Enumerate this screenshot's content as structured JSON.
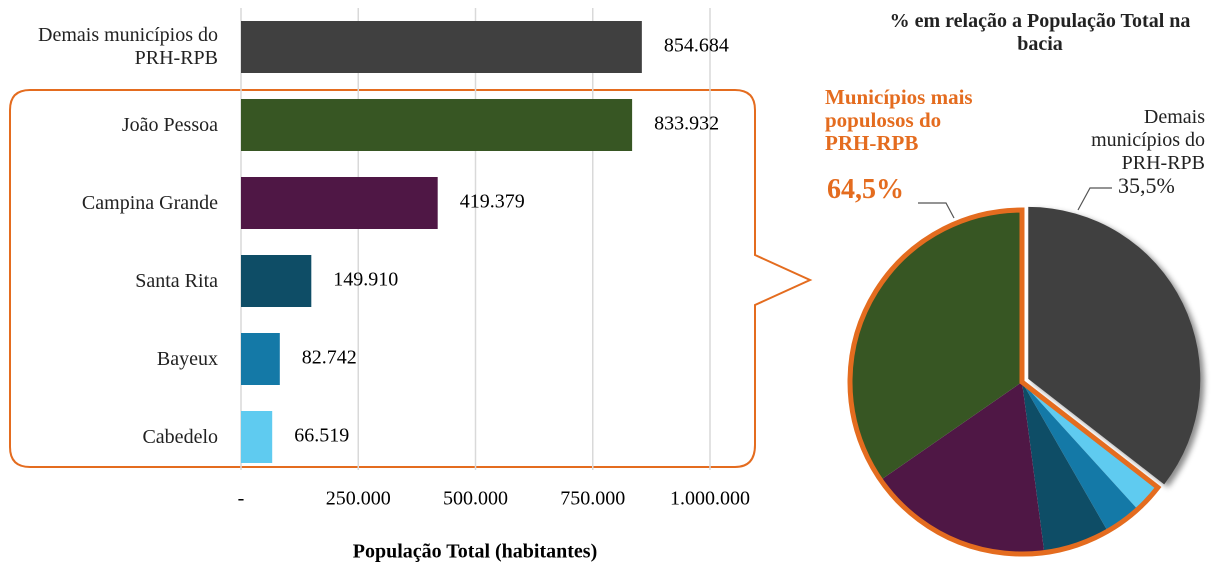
{
  "chart_data": [
    {
      "type": "barh",
      "categories": [
        "Demais municípios do PRH-RPB",
        "João Pessoa",
        "Campina Grande",
        "Santa Rita",
        "Bayeux",
        "Cabedelo"
      ],
      "values": [
        854684,
        833932,
        419379,
        149910,
        82742,
        66519
      ],
      "value_labels": [
        "854.684",
        "833.932",
        "419.379",
        "149.910",
        "82.742",
        "66.519"
      ],
      "colors": [
        "#404040",
        "#375623",
        "#4f1745",
        "#0e4d66",
        "#1479a7",
        "#5fcbf0"
      ],
      "xlabel": "População Total (habitantes)",
      "xlim": [
        0,
        1000000
      ],
      "xticks": [
        {
          "value": 0,
          "label": "-"
        },
        {
          "value": 250000,
          "label": "250.000"
        },
        {
          "value": 500000,
          "label": "500.000"
        },
        {
          "value": 750000,
          "label": "750.000"
        },
        {
          "value": 1000000,
          "label": "1.000.000"
        }
      ],
      "grid": true
    },
    {
      "type": "pie",
      "title": "% em relação a População Total na bacia",
      "categories": [
        "Demais municípios do PRH-RPB",
        "Municípios mais populosos do PRH-RPB"
      ],
      "values": [
        35.5,
        64.5
      ],
      "value_labels": [
        "35,5%",
        "64,5%"
      ],
      "colors": [
        "#404040",
        "#e46c1f"
      ]
    }
  ]
}
